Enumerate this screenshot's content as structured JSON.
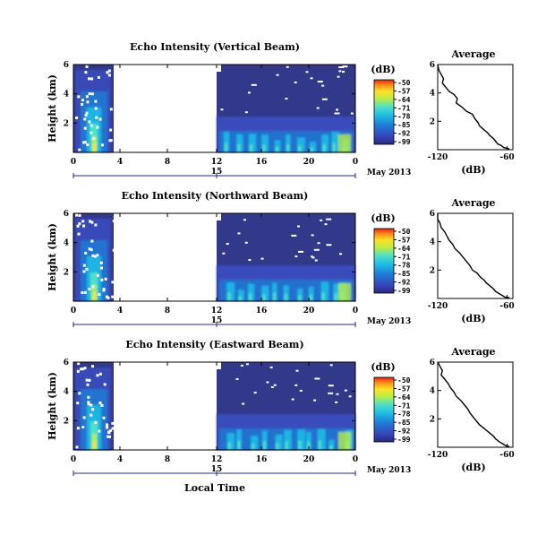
{
  "chart_data": [
    {
      "type": "heatmap",
      "title": "Echo Intensity (Vertical Beam)",
      "ylabel": "Height (km)",
      "xlabel": "Local Time",
      "x_ticks": [
        "0",
        "4",
        "8",
        "12",
        "16",
        "20",
        "0"
      ],
      "y_ticks": [
        "6",
        "4",
        "2"
      ],
      "date_ticks": [
        "15"
      ],
      "date_label": "May 2013",
      "xlim": [
        0,
        24
      ],
      "ylim": [
        0,
        6
      ],
      "colorbar": {
        "unit": "(dB)",
        "ticks": [
          "-50",
          "-57",
          "-64",
          "-71",
          "-78",
          "-85",
          "-92",
          "-99"
        ],
        "range": [
          -99,
          -50
        ]
      },
      "data_gap_hours": [
        3.3,
        12.0
      ],
      "average_profile": {
        "title": "Average",
        "xlabel": "(dB)",
        "x_ticks": [
          "-120",
          "-60"
        ],
        "y_ticks": [
          "6",
          "4",
          "2"
        ],
        "xlim": [
          -120,
          -55
        ],
        "ylim": [
          0,
          6
        ],
        "x": [
          -122,
          -119,
          -117,
          -115,
          -116,
          -113,
          -110,
          -106,
          -103,
          -104,
          -99,
          -95,
          -90,
          -88,
          -85,
          -84,
          -80,
          -77,
          -75,
          -72,
          -70,
          -68,
          -65,
          -63,
          -58
        ],
        "y": [
          6.0,
          5.6,
          5.3,
          5.0,
          4.7,
          4.4,
          4.1,
          3.9,
          3.6,
          3.3,
          3.0,
          2.7,
          2.5,
          2.2,
          1.9,
          1.7,
          1.4,
          1.2,
          1.0,
          0.8,
          0.6,
          0.4,
          0.3,
          0.15,
          0.05
        ]
      }
    },
    {
      "type": "heatmap",
      "title": "Echo Intensity (Northward Beam)",
      "ylabel": "Height (km)",
      "xlabel": "Local Time",
      "x_ticks": [
        "0",
        "4",
        "8",
        "12",
        "16",
        "20",
        "0"
      ],
      "y_ticks": [
        "6",
        "4",
        "2"
      ],
      "date_ticks": [
        "15"
      ],
      "date_label": "May 2013",
      "xlim": [
        0,
        24
      ],
      "ylim": [
        0,
        6
      ],
      "colorbar": {
        "unit": "(dB)",
        "ticks": [
          "-50",
          "-57",
          "-64",
          "-71",
          "-78",
          "-85",
          "-92",
          "-99"
        ],
        "range": [
          -99,
          -50
        ]
      },
      "data_gap_hours": [
        3.3,
        12.0
      ],
      "average_profile": {
        "title": "Average",
        "xlabel": "(dB)",
        "x_ticks": [
          "-120",
          "-60"
        ],
        "y_ticks": [
          "6",
          "4",
          "2"
        ],
        "xlim": [
          -120,
          -55
        ],
        "ylim": [
          0,
          6
        ],
        "x": [
          -122,
          -120,
          -118,
          -117,
          -114,
          -112,
          -110,
          -107,
          -105,
          -101,
          -98,
          -95,
          -92,
          -90,
          -86,
          -83,
          -80,
          -78,
          -75,
          -72,
          -70,
          -67,
          -64,
          -62,
          -58
        ],
        "y": [
          6.0,
          5.6,
          5.3,
          5.0,
          4.7,
          4.4,
          4.1,
          3.8,
          3.5,
          3.2,
          2.9,
          2.6,
          2.3,
          2.0,
          1.8,
          1.5,
          1.3,
          1.1,
          0.9,
          0.7,
          0.5,
          0.35,
          0.2,
          0.1,
          0.05
        ]
      }
    },
    {
      "type": "heatmap",
      "title": "Echo Intensity (Eastward Beam)",
      "ylabel": "Height (km)",
      "xlabel": "Local Time",
      "x_ticks": [
        "0",
        "4",
        "8",
        "12",
        "16",
        "20",
        "0"
      ],
      "y_ticks": [
        "6",
        "4",
        "2"
      ],
      "date_ticks": [
        "15"
      ],
      "date_label": "May 2013",
      "xlim": [
        0,
        24
      ],
      "ylim": [
        0,
        6
      ],
      "colorbar": {
        "unit": "(dB)",
        "ticks": [
          "-50",
          "-57",
          "-64",
          "-71",
          "-78",
          "-85",
          "-92",
          "-99"
        ],
        "range": [
          -99,
          -50
        ]
      },
      "data_gap_hours": [
        3.3,
        12.0
      ],
      "average_profile": {
        "title": "Average",
        "xlabel": "(dB)",
        "x_ticks": [
          "-120",
          "-60"
        ],
        "y_ticks": [
          "6",
          "4",
          "2"
        ],
        "xlim": [
          -120,
          -55
        ],
        "ylim": [
          0,
          6
        ],
        "x": [
          -121,
          -118,
          -116,
          -117,
          -114,
          -111,
          -109,
          -106,
          -104,
          -100,
          -97,
          -94,
          -92,
          -89,
          -87,
          -84,
          -81,
          -78,
          -75,
          -72,
          -70,
          -67,
          -64,
          -61,
          -58
        ],
        "y": [
          6.0,
          5.7,
          5.4,
          5.1,
          4.8,
          4.5,
          4.2,
          3.9,
          3.6,
          3.3,
          3.0,
          2.7,
          2.4,
          2.1,
          1.9,
          1.6,
          1.4,
          1.2,
          1.0,
          0.8,
          0.6,
          0.4,
          0.25,
          0.1,
          0.05
        ]
      }
    }
  ],
  "colors": {
    "background": "#32398a",
    "colormap": [
      "#2a2a80",
      "#3545b8",
      "#1e7fd6",
      "#1fbde6",
      "#4fe0c8",
      "#b6ec48",
      "#ffe227",
      "#ff8a16",
      "#e8201a"
    ],
    "axis_line": "#1c2a8a"
  }
}
